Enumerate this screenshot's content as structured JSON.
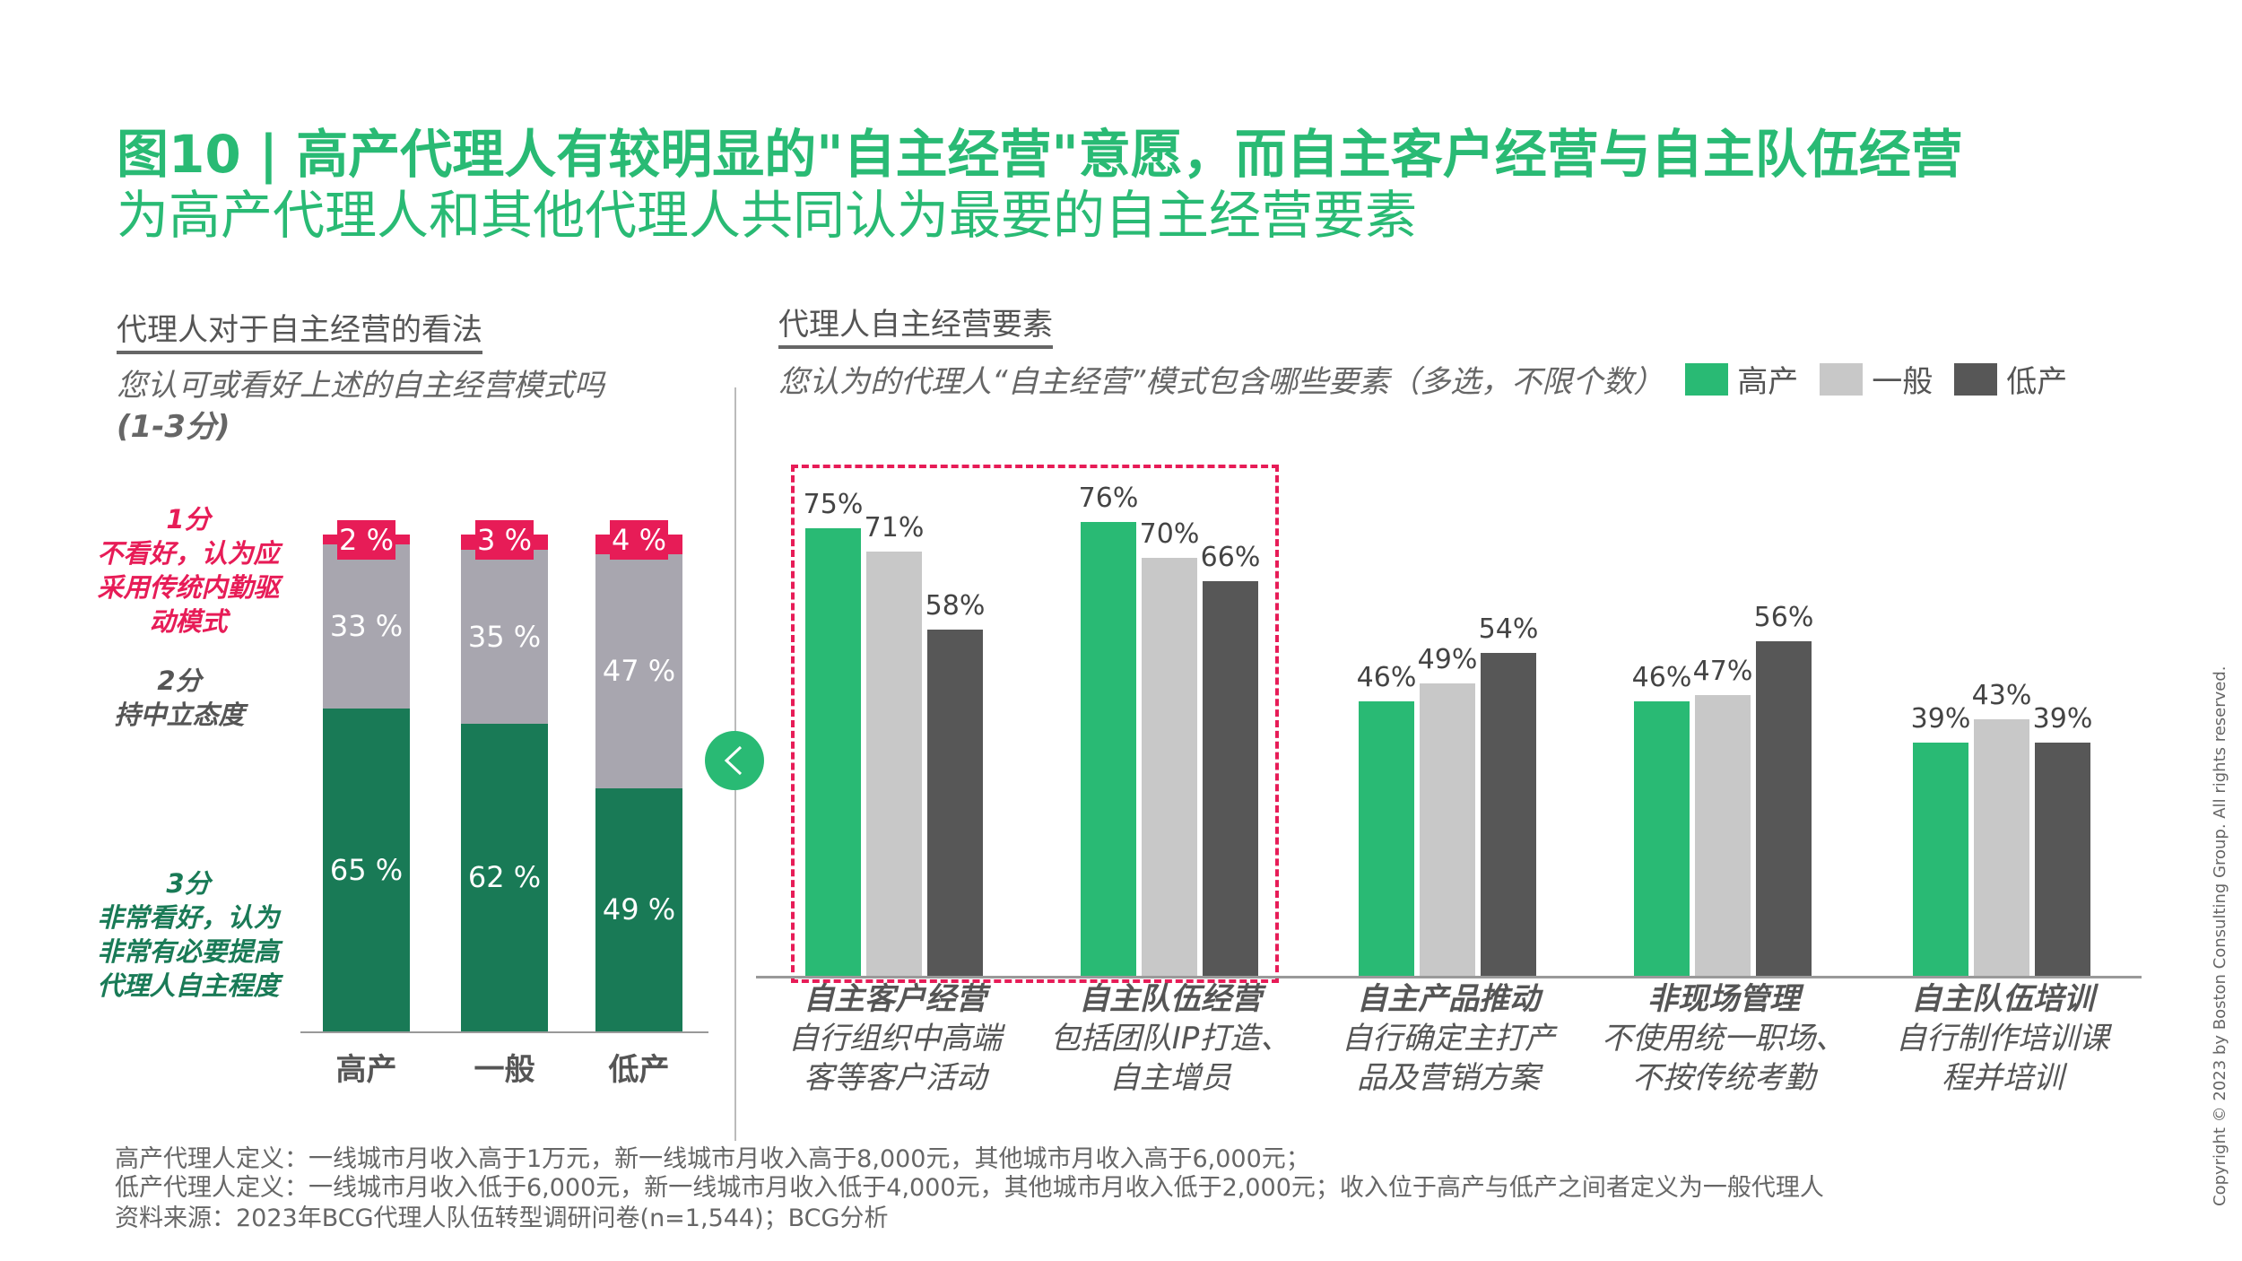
{
  "title": {
    "line1": "图10 | 高产代理人有较明显的\"自主经营\"意愿，而自主客户经营与自主队伍经营",
    "line2": "为高产代理人和其他代理人共同认为最要的自主经营要素"
  },
  "colors": {
    "green": "#29BA74",
    "dark_green": "#197A56",
    "grey": "#A8A6AF",
    "light_grey": "#C8C8C8",
    "dark_grey": "#575757",
    "pink": "#E71C57"
  },
  "chart_data": [
    {
      "type": "bar",
      "stacked": true,
      "title": "代理人对于自主经营的看法",
      "subtitle": "您认可或看好上述的自主经营模式吗",
      "subtitle2": "(1-3分)",
      "categories": [
        "高产",
        "一般",
        "低产"
      ],
      "series": [
        {
          "name": "3分",
          "desc": [
            "非常看好，认为",
            "非常有必要提高",
            "代理人自主程度"
          ],
          "values": [
            65,
            62,
            49
          ],
          "labels": [
            "65 %",
            "62 %",
            "49 %"
          ]
        },
        {
          "name": "2分",
          "desc": [
            "持中立态度"
          ],
          "values": [
            33,
            35,
            47
          ],
          "labels": [
            "33 %",
            "35 %",
            "47 %"
          ]
        },
        {
          "name": "1分",
          "desc": [
            "不看好，认为应",
            "采用传统内勤驱",
            "动模式"
          ],
          "values": [
            2,
            3,
            4
          ],
          "labels": [
            "2 %",
            "3 %",
            "4 %"
          ]
        }
      ],
      "ylim": [
        0,
        100
      ]
    },
    {
      "type": "bar",
      "title": "代理人自主经营要素",
      "subtitle": "您认为的代理人“自主经营”模式包含哪些要素（多选，不限个数）",
      "legend": [
        "高产",
        "一般",
        "低产"
      ],
      "legend_position": "top-right",
      "categories": [
        {
          "name": "自主客户经营",
          "desc": [
            "自行组织中高端",
            "客等客户活动"
          ]
        },
        {
          "name": "自主队伍经营",
          "desc": [
            "包括团队IP打造、",
            "自主增员"
          ]
        },
        {
          "name": "自主产品推动",
          "desc": [
            "自行确定主打产",
            "品及营销方案"
          ]
        },
        {
          "name": "非现场管理",
          "desc": [
            "不使用统一职场、",
            "不按传统考勤"
          ]
        },
        {
          "name": "自主队伍培训",
          "desc": [
            "自行制作培训课",
            "程并培训"
          ]
        }
      ],
      "series": [
        {
          "name": "高产",
          "values": [
            75,
            76,
            46,
            46,
            39
          ]
        },
        {
          "name": "一般",
          "values": [
            71,
            70,
            49,
            47,
            43
          ]
        },
        {
          "name": "低产",
          "values": [
            58,
            66,
            54,
            56,
            39
          ]
        }
      ],
      "highlighted": [
        "自主客户经营",
        "自主队伍经营"
      ],
      "ylim": [
        0,
        100
      ]
    }
  ],
  "footnotes": [
    "高产代理人定义：一线城市月收入高于1万元，新一线城市月收入高于8,000元，其他城市月收入高于6,000元；",
    "低产代理人定义：一线城市月收入低于6,000元，新一线城市月收入低于4,000元，其他城市月收入低于2,000元；收入位于高产与低产之间者定义为一般代理人",
    "资料来源：2023年BCG代理人队伍转型调研问卷(n=1,544)；BCG分析"
  ],
  "copyright": "Copyright © 2023 by Boston Consulting Group. All rights reserved."
}
